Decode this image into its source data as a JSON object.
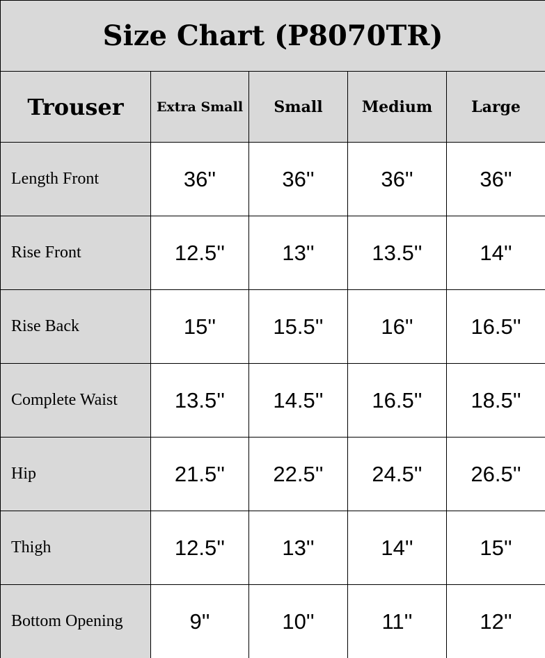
{
  "title": "Size Chart (P8070TR)",
  "header": {
    "category": "Trouser",
    "sizes": [
      "Extra Small",
      "Small",
      "Medium",
      "Large"
    ]
  },
  "rows": [
    {
      "label": "Length Front",
      "values": [
        "36''",
        "36''",
        "36''",
        "36''"
      ]
    },
    {
      "label": "Rise Front",
      "values": [
        "12.5''",
        "13''",
        "13.5''",
        "14''"
      ]
    },
    {
      "label": "Rise Back",
      "values": [
        "15''",
        "15.5''",
        "16''",
        "16.5''"
      ]
    },
    {
      "label": "Complete Waist",
      "values": [
        "13.5''",
        "14.5''",
        "16.5''",
        "18.5''"
      ]
    },
    {
      "label": "Hip",
      "values": [
        "21.5''",
        "22.5''",
        "24.5''",
        "26.5''"
      ]
    },
    {
      "label": "Thigh",
      "values": [
        "12.5''",
        "13''",
        "14''",
        "15''"
      ]
    },
    {
      "label": "Bottom Opening",
      "values": [
        "9''",
        "10''",
        "11''",
        "12''"
      ]
    }
  ],
  "colors": {
    "header_bg": "#d9d9d9",
    "border": "#000000"
  }
}
